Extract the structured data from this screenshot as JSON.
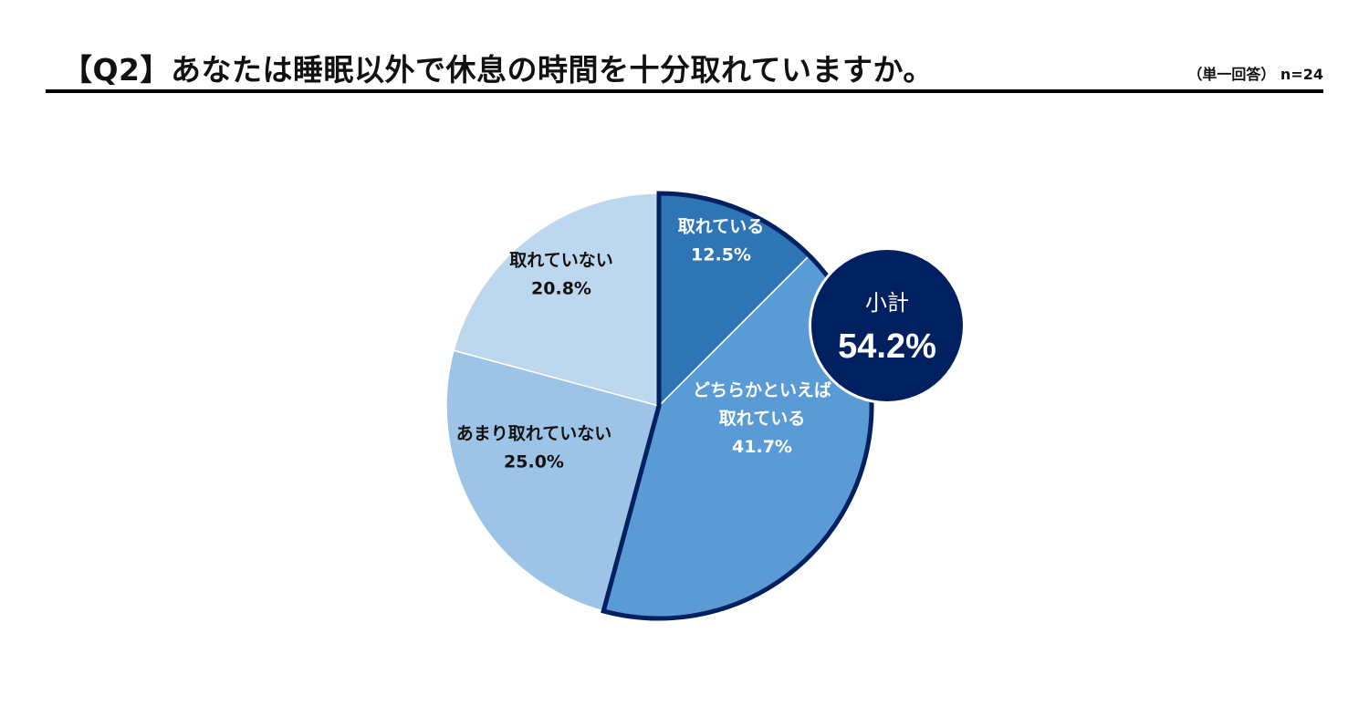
{
  "header": {
    "title": "【Q2】あなたは睡眠以外で休息の時間を十分取れていますか。",
    "note": "（単一回答） n=24"
  },
  "chart_data": {
    "type": "pie",
    "title": "【Q2】あなたは睡眠以外で休息の時間を十分取れていますか。",
    "slices": [
      {
        "label": "取れている",
        "value": 12.5,
        "value_text": "12.5%",
        "color": "#2e75b6",
        "text_color": "#ffffff",
        "highlighted": true
      },
      {
        "label": "どちらかといえば\n取れている",
        "value": 41.7,
        "value_text": "41.7%",
        "color": "#5b9bd5",
        "text_color": "#ffffff",
        "highlighted": true
      },
      {
        "label": "あまり取れていない",
        "value": 25.0,
        "value_text": "25.0%",
        "color": "#9dc3e6",
        "text_color": "#111111",
        "highlighted": false
      },
      {
        "label": "取れていない",
        "value": 20.8,
        "value_text": "20.8%",
        "color": "#bdd7ee",
        "text_color": "#111111",
        "highlighted": false
      }
    ],
    "start_angle_deg": 0,
    "direction": "clockwise",
    "highlight_outline_color": "#002060",
    "subtotal": {
      "label": "小計",
      "value": 54.2,
      "value_text": "54.2%",
      "color": "#002060",
      "text_color": "#ffffff"
    }
  }
}
